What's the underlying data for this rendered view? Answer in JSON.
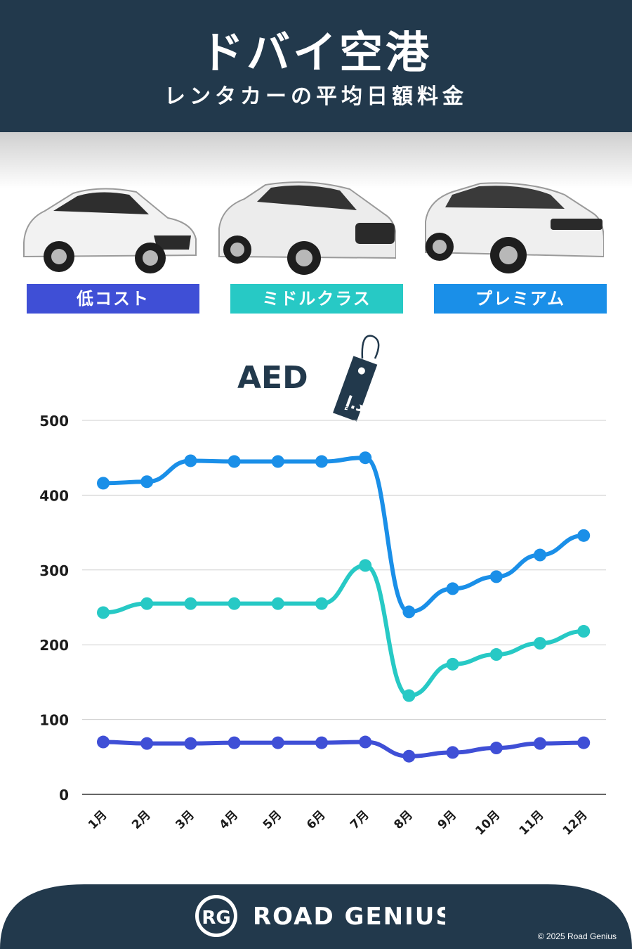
{
  "header": {
    "title": "ドバイ空港",
    "subtitle": "レンタカーの平均日額料金"
  },
  "categories": [
    {
      "label": "低コスト",
      "color": "#3f4fd6"
    },
    {
      "label": "ミドルクラス",
      "color": "#27c9c5"
    },
    {
      "label": "プレミアム",
      "color": "#1a8fe8"
    }
  ],
  "currency": "AED",
  "currency_tag_text": "د.إ",
  "brand": {
    "logo_initials": "RG",
    "name": "ROAD GENIUS",
    "copyright": "© 2025 Road Genius"
  },
  "chart_data": {
    "type": "line",
    "categories": [
      "1月",
      "2月",
      "3月",
      "4月",
      "5月",
      "6月",
      "7月",
      "8月",
      "9月",
      "10月",
      "11月",
      "12月"
    ],
    "series": [
      {
        "name": "プレミアム",
        "color": "#1a8fe8",
        "values": [
          416,
          418,
          446,
          445,
          445,
          445,
          450,
          244,
          275,
          291,
          320,
          346
        ]
      },
      {
        "name": "ミドルクラス",
        "color": "#27c9c5",
        "values": [
          243,
          255,
          255,
          255,
          255,
          255,
          306,
          132,
          174,
          187,
          202,
          218
        ]
      },
      {
        "name": "低コスト",
        "color": "#3f4fd6",
        "values": [
          70,
          68,
          68,
          69,
          69,
          69,
          70,
          51,
          56,
          62,
          68,
          69
        ]
      }
    ],
    "ylim": [
      0,
      500
    ],
    "yticks": [
      0,
      100,
      200,
      300,
      400,
      500
    ],
    "grid": true
  }
}
